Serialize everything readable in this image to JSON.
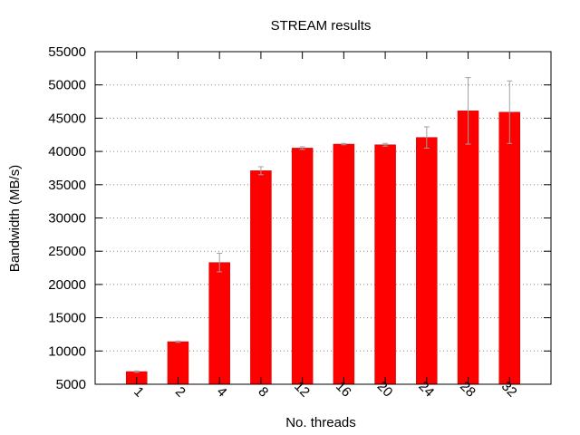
{
  "chart_data": {
    "type": "bar",
    "title": "STREAM results",
    "xlabel": "No. threads",
    "ylabel": "Bandwidth (MB/s)",
    "categories": [
      "1",
      "2",
      "4",
      "8",
      "12",
      "16",
      "20",
      "24",
      "28",
      "32"
    ],
    "values": [
      6900,
      11400,
      23300,
      37100,
      40500,
      41100,
      41000,
      42100,
      46100,
      45900
    ],
    "errors": [
      100,
      100,
      1400,
      600,
      200,
      100,
      200,
      1600,
      5000,
      4700
    ],
    "ylim": [
      5000,
      55000
    ],
    "yticks": [
      5000,
      10000,
      15000,
      20000,
      25000,
      30000,
      35000,
      40000,
      45000,
      50000,
      55000
    ],
    "grid": "horizontal dotted",
    "bar_color": "#ff0000",
    "error_bar_color": "#a0a0a0"
  }
}
